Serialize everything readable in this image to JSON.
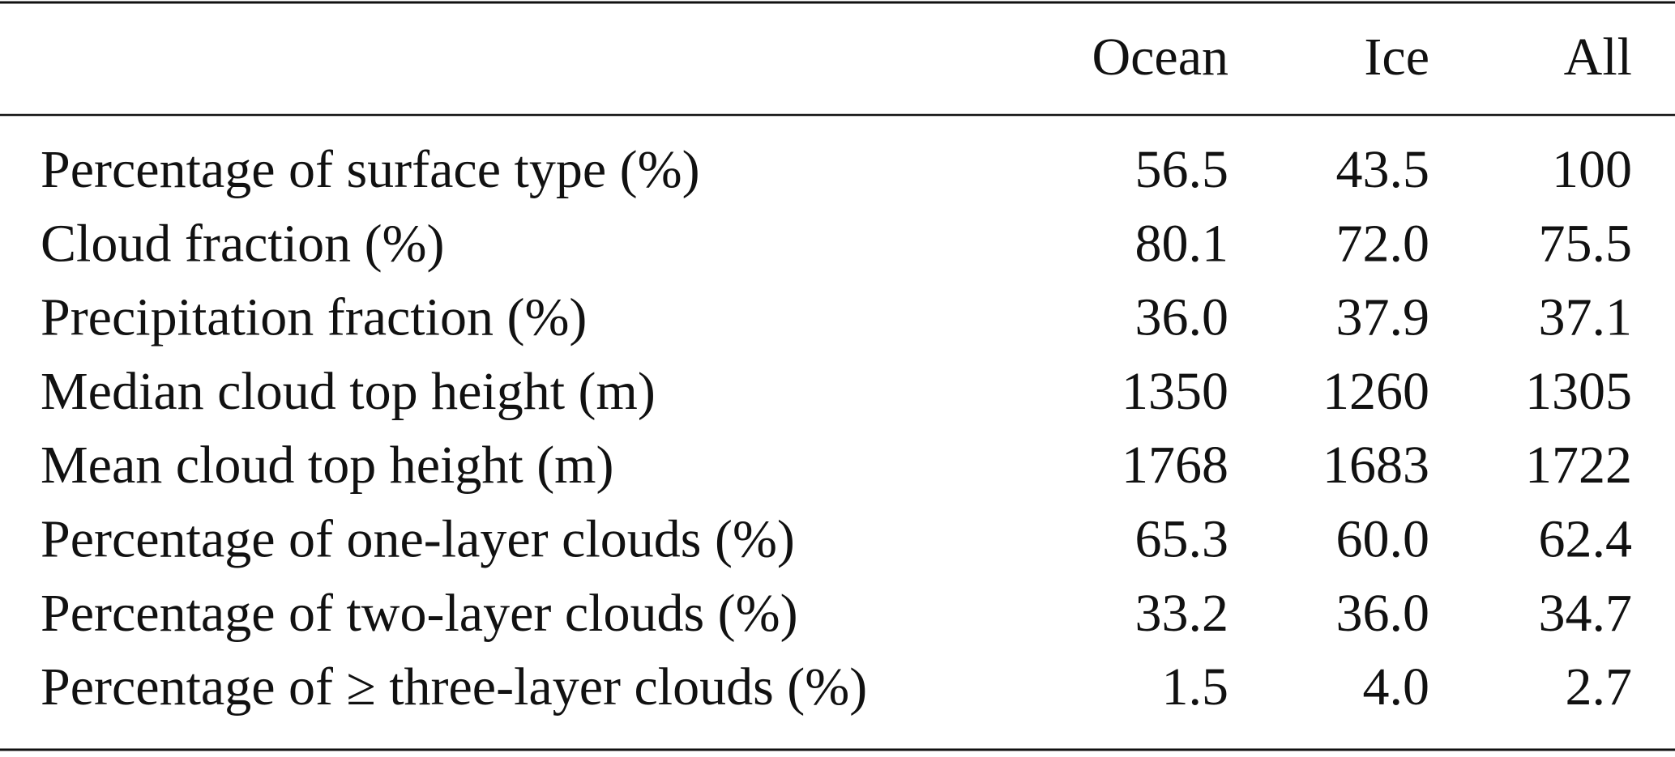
{
  "table": {
    "columns": [
      "Ocean",
      "Ice",
      "All"
    ],
    "rows": [
      {
        "label": "Percentage of surface type (%)",
        "values": [
          "56.5",
          "43.5",
          "100"
        ]
      },
      {
        "label": "Cloud fraction (%)",
        "values": [
          "80.1",
          "72.0",
          "75.5"
        ]
      },
      {
        "label": "Precipitation fraction (%)",
        "values": [
          "36.0",
          "37.9",
          "37.1"
        ]
      },
      {
        "label": "Median cloud top height (m)",
        "values": [
          "1350",
          "1260",
          "1305"
        ]
      },
      {
        "label": "Mean cloud top height (m)",
        "values": [
          "1768",
          "1683",
          "1722"
        ]
      },
      {
        "label": "Percentage of one-layer clouds (%)",
        "values": [
          "65.3",
          "60.0",
          "62.4"
        ]
      },
      {
        "label": "Percentage of two-layer clouds (%)",
        "values": [
          "33.2",
          "36.0",
          "34.7"
        ]
      },
      {
        "label": "Percentage of ≥ three-layer clouds (%)",
        "values": [
          "1.5",
          "4.0",
          "2.7"
        ]
      }
    ]
  }
}
